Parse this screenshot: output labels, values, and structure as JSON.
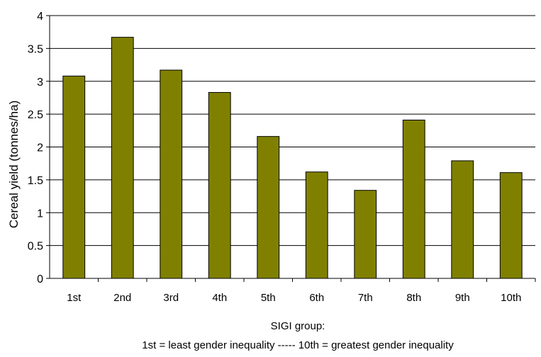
{
  "chart_data": {
    "type": "bar",
    "categories": [
      "1st",
      "2nd",
      "3rd",
      "4th",
      "5th",
      "6th",
      "7th",
      "8th",
      "9th",
      "10th"
    ],
    "values": [
      3.08,
      3.67,
      3.17,
      2.83,
      2.16,
      1.62,
      1.34,
      2.41,
      1.79,
      1.61
    ],
    "ylabel": "Cereal yield (tonnes/ha)",
    "xlabel": "SIGI group:",
    "xlabel_note": "1st = least gender inequality ----- 10th = greatest gender inequality",
    "ylim": [
      0,
      4
    ],
    "yticks": [
      "0",
      "0.5",
      "1",
      "1.5",
      "2",
      "2.5",
      "3",
      "3.5",
      "4"
    ],
    "grid": "horizontal",
    "legend": "none",
    "bar_color": "#808000"
  }
}
